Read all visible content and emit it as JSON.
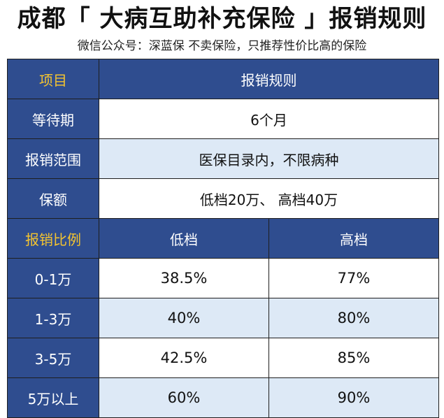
{
  "title": "成都「 大病互助补充保险 」报销规则",
  "subtitle": "微信公众号：深蓝保   不卖保险，只推荐性价比高的保险",
  "table": {
    "header": {
      "item": "项目",
      "rule": "报销规则"
    },
    "waiting": {
      "label": "等待期",
      "value": "6个月"
    },
    "scope": {
      "label": "报销范围",
      "value": "医保目录内，不限病种"
    },
    "amount": {
      "label": "保额",
      "value": "低档20万、 高档40万"
    },
    "ratio_header": {
      "label": "报销比例",
      "low": "低档",
      "high": "高档"
    },
    "rows": [
      {
        "range": "0-1万",
        "low": "38.5%",
        "high": "77%"
      },
      {
        "range": "1-3万",
        "low": "40%",
        "high": "80%"
      },
      {
        "range": "3-5万",
        "low": "42.5%",
        "high": "85%"
      },
      {
        "range": "5万以上",
        "low": "60%",
        "high": "90%"
      }
    ]
  },
  "colors": {
    "header_blue": "#2f4d8f",
    "gold_text": "#f4c430",
    "light_row": "#dde9f6"
  }
}
